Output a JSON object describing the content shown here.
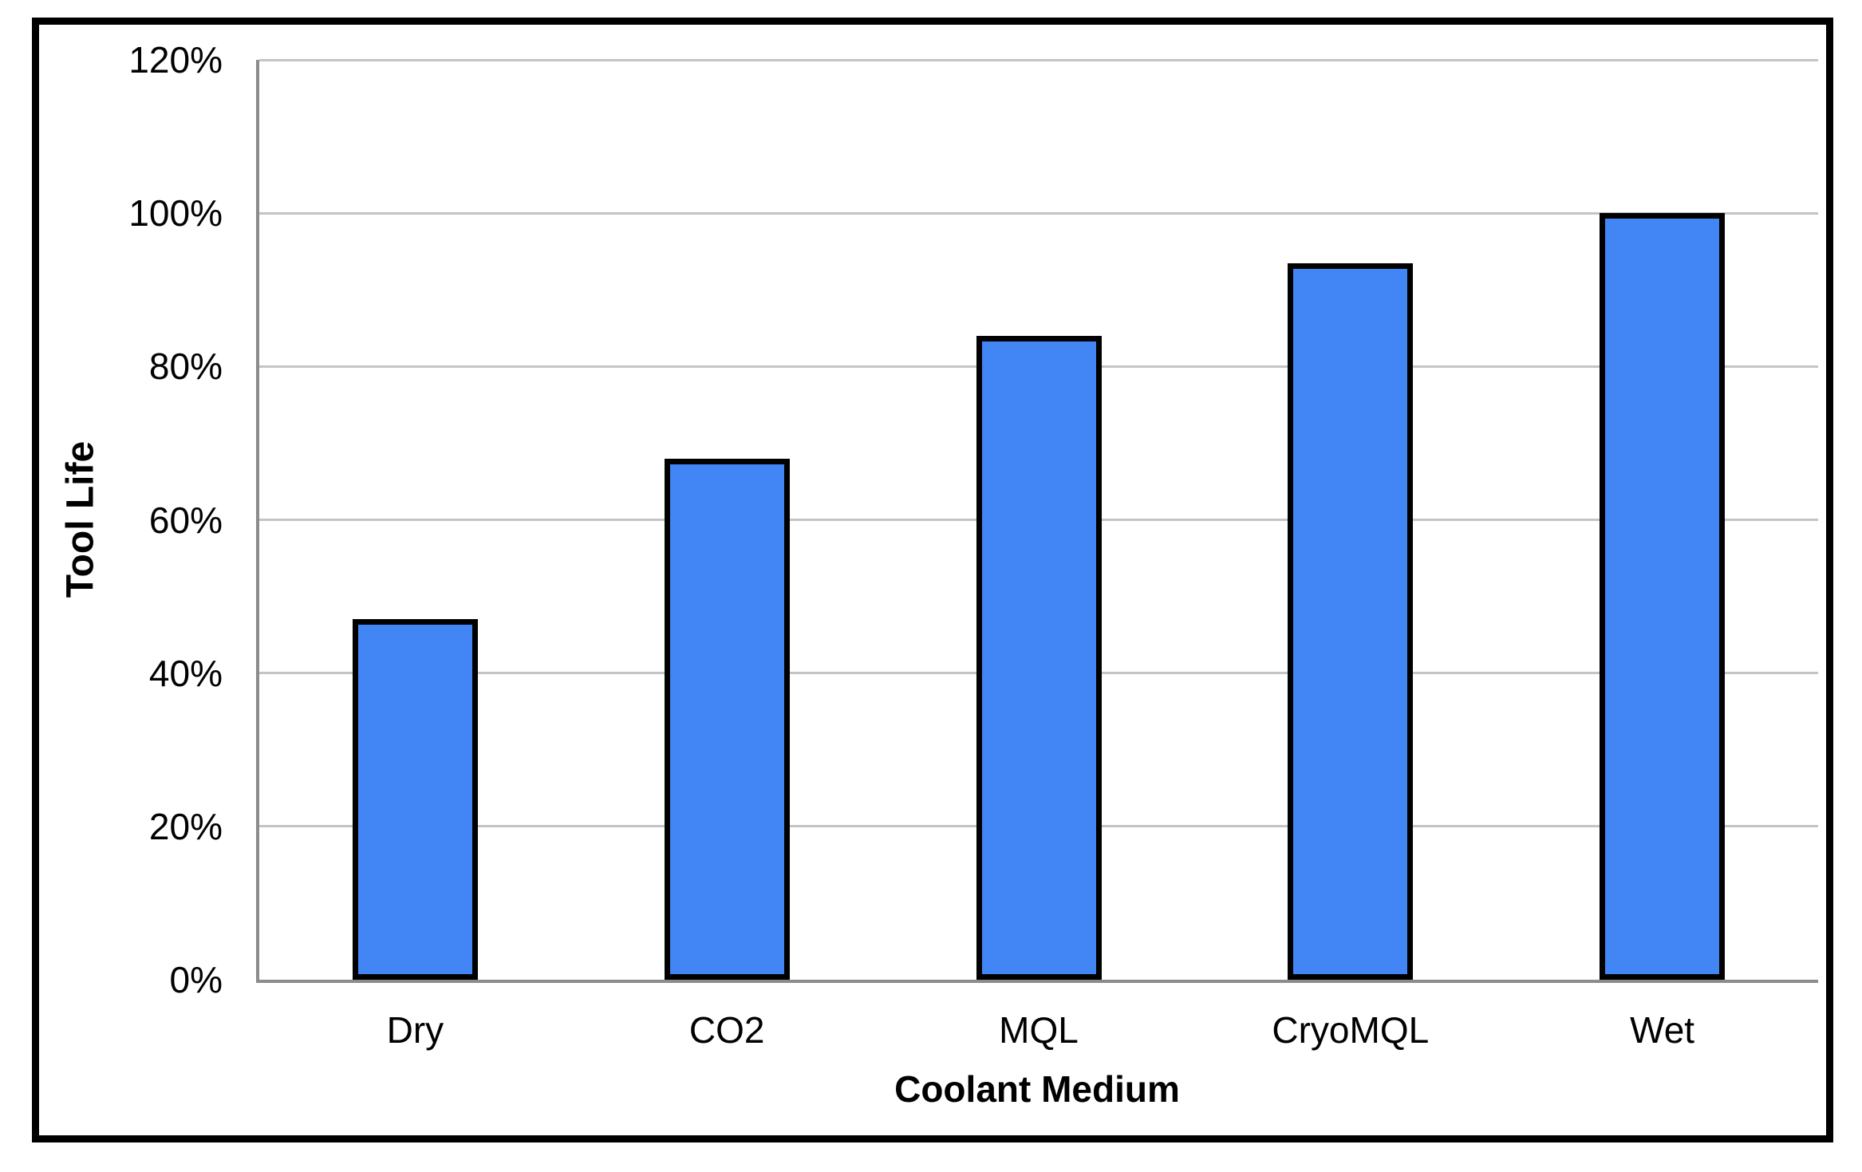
{
  "chart_data": {
    "type": "bar",
    "title": "",
    "categories": [
      "Dry",
      "CO2",
      "MQL",
      "CryoMQL",
      "Wet"
    ],
    "values": [
      47,
      68,
      84,
      93.5,
      100
    ],
    "value_unit": "%",
    "xlabel": "Coolant Medium",
    "ylabel": "Tool Life",
    "ylim": [
      0,
      120
    ],
    "ytick_step": 20,
    "ytick_labels": [
      "0%",
      "20%",
      "40%",
      "60%",
      "80%",
      "100%",
      "120%"
    ],
    "grid": "horizontal",
    "legend_position": "none",
    "colors": {
      "bar_fill": "#4285F4",
      "bar_border": "#000000",
      "gridline": "#C4C4C4",
      "axis_line": "#8C8C8C",
      "text": "#000000",
      "frame_border": "#000000",
      "background": "#FFFFFF"
    }
  }
}
